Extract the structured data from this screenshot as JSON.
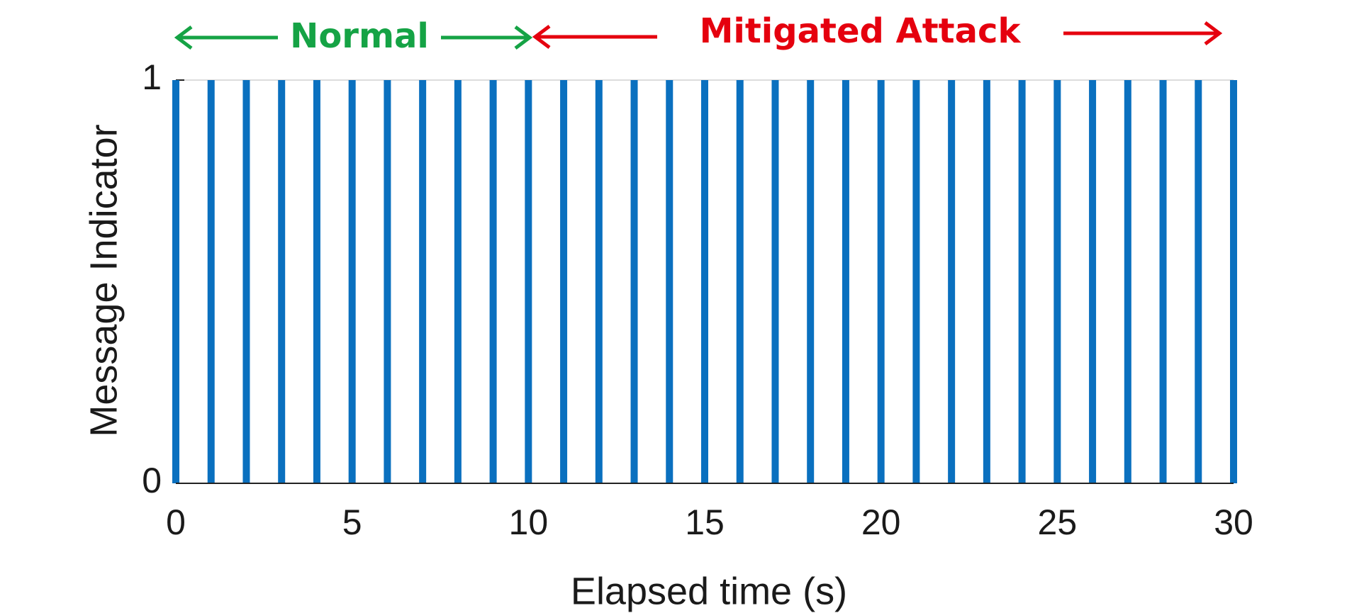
{
  "chart_data": {
    "type": "bar",
    "x": [
      0,
      1,
      2,
      3,
      4,
      5,
      6,
      7,
      8,
      9,
      10,
      11,
      12,
      13,
      14,
      15,
      16,
      17,
      18,
      19,
      20,
      21,
      22,
      23,
      24,
      25,
      26,
      27,
      28,
      29,
      30
    ],
    "values": [
      1,
      1,
      1,
      1,
      1,
      1,
      1,
      1,
      1,
      1,
      1,
      1,
      1,
      1,
      1,
      1,
      1,
      1,
      1,
      1,
      1,
      1,
      1,
      1,
      1,
      1,
      1,
      1,
      1,
      1,
      1
    ],
    "color": "#0a70bf",
    "xlim": [
      0,
      30
    ],
    "ylim": [
      0,
      1
    ],
    "xticks": [
      0,
      5,
      10,
      15,
      20,
      25,
      30
    ],
    "yticks": [
      0,
      1
    ],
    "x_label": "Elapsed time (s)",
    "y_label": "Message Indicator",
    "annotations": [
      {
        "text": "Normal",
        "color": "#15a345"
      },
      {
        "text": "Mitigated Attack",
        "color": "#e5000e"
      }
    ]
  }
}
